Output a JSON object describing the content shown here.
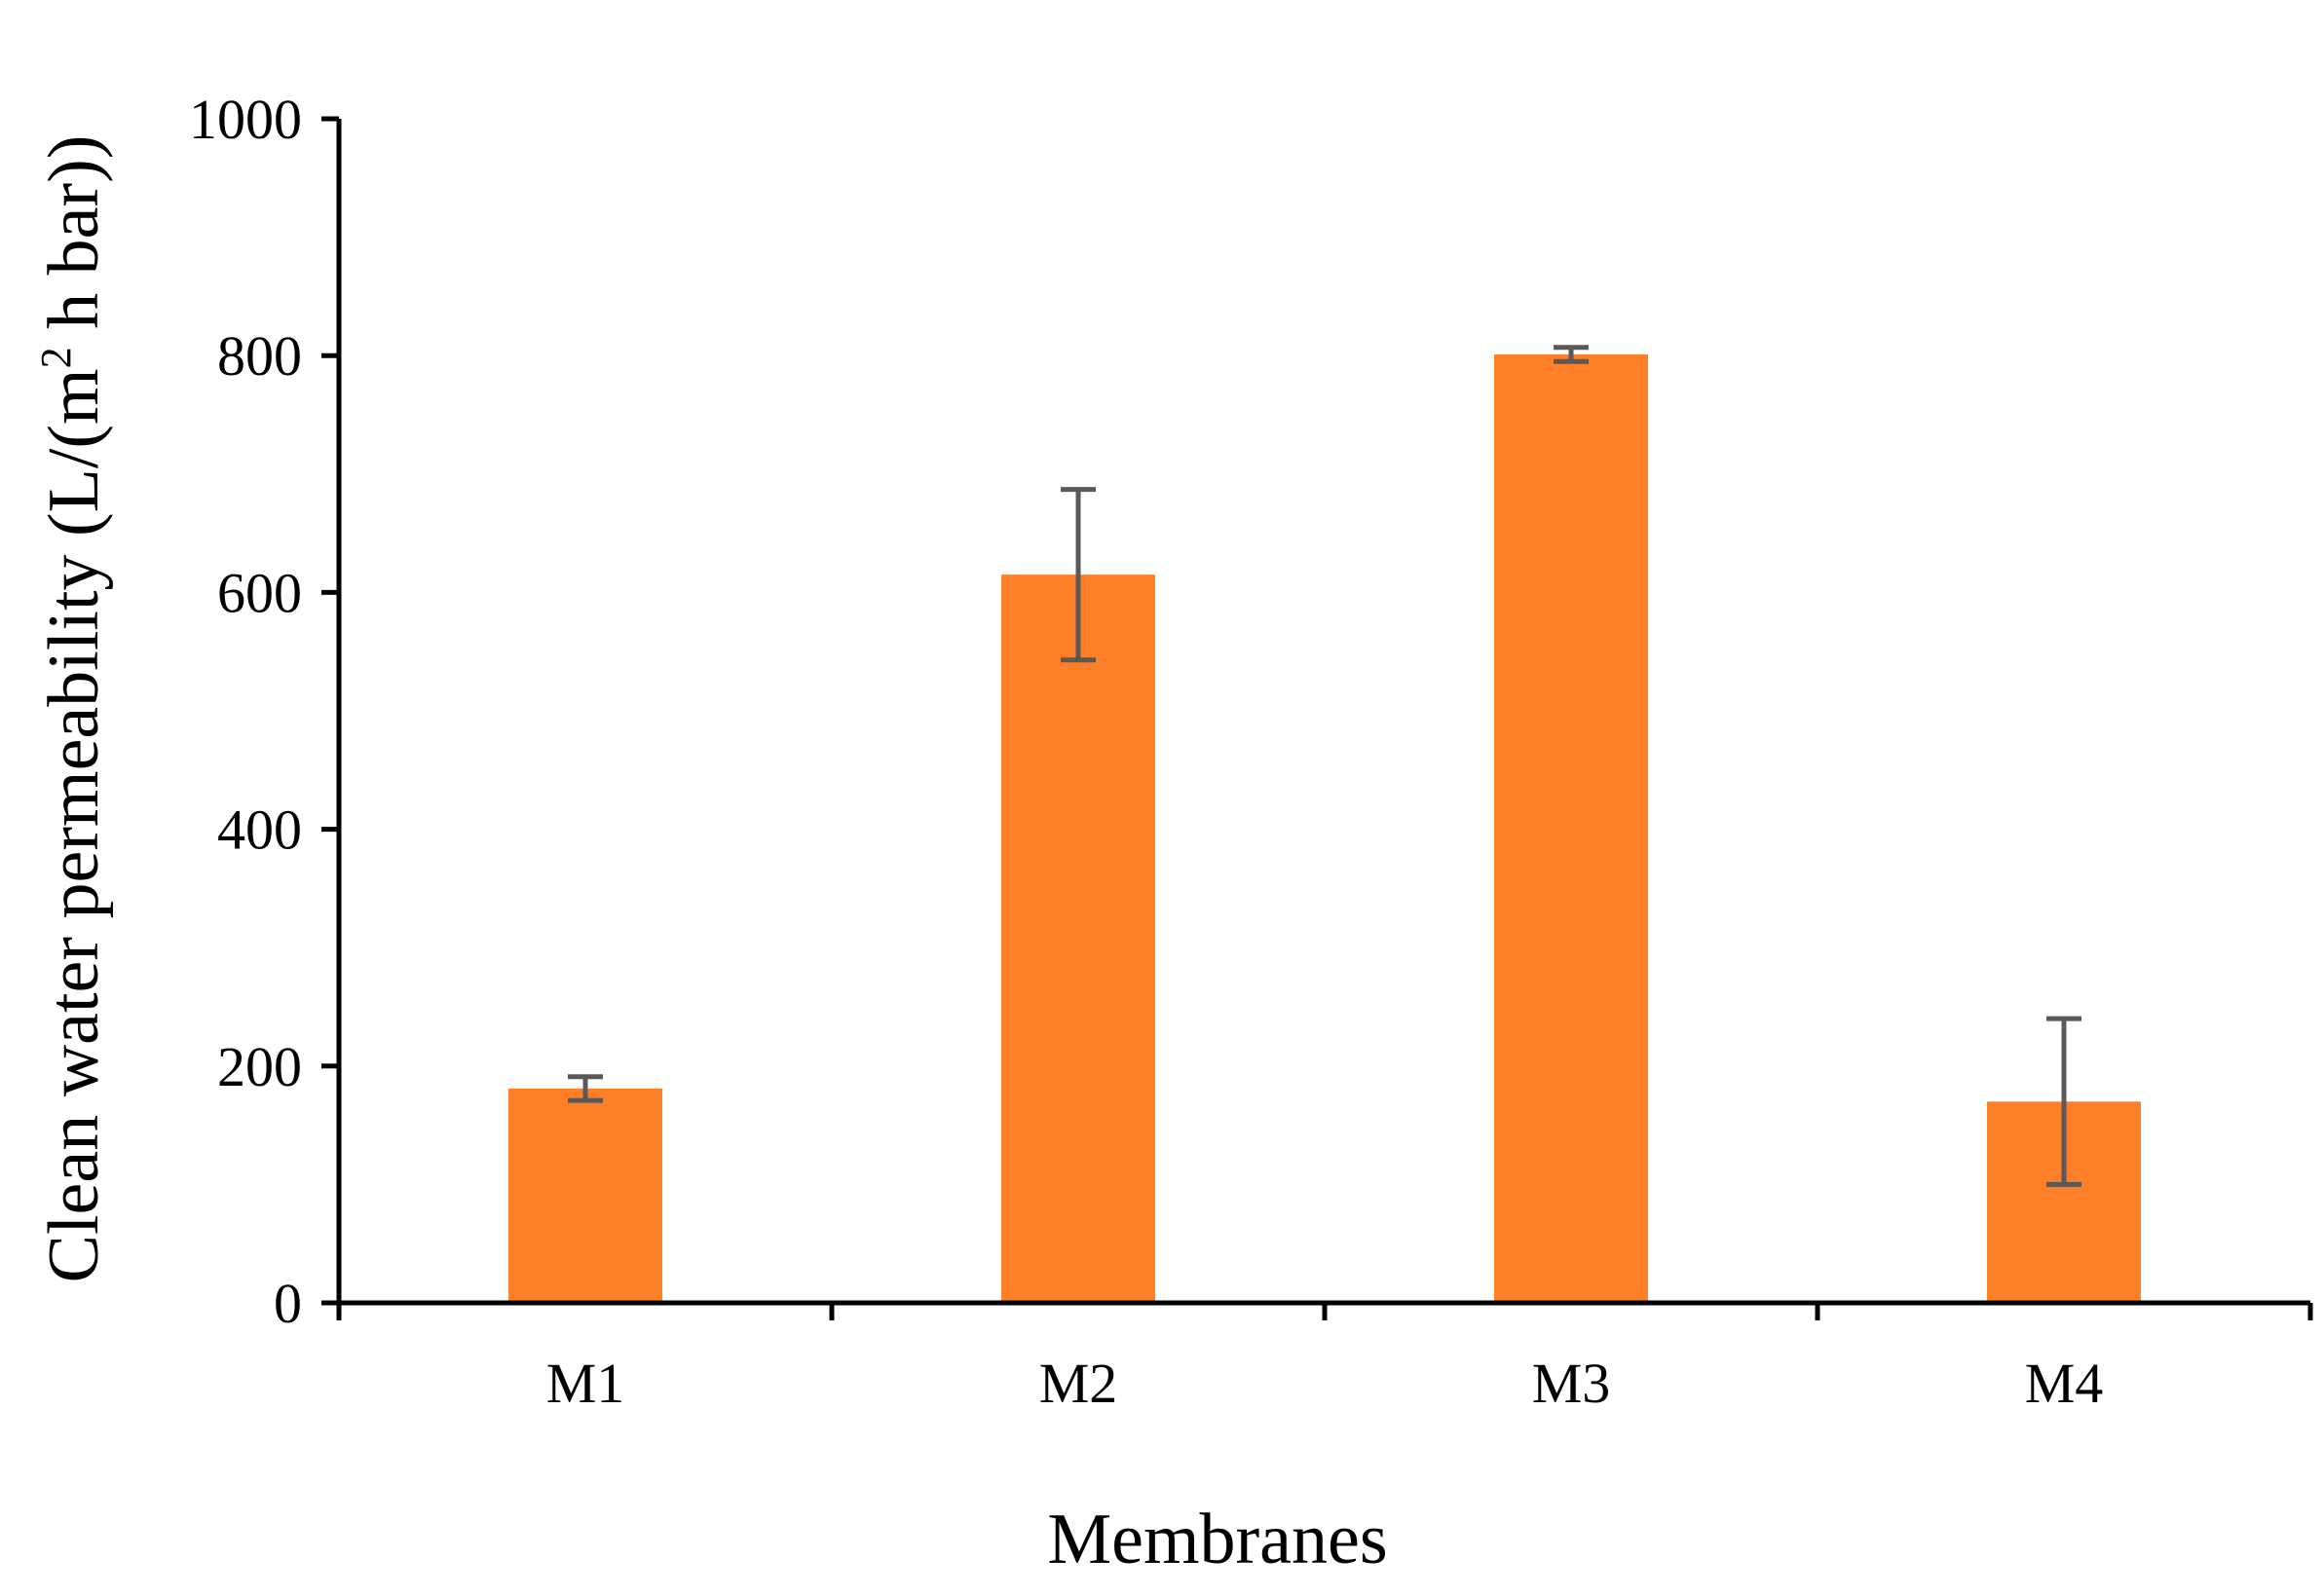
{
  "chart_data": {
    "type": "bar",
    "xlabel": "Membranes",
    "ylabel": "Clean water permeability (L/(m² h bar))",
    "ylabel_parts": {
      "pre": "Clean water permeability (L/(m",
      "sup": "2",
      "post": " h bar))"
    },
    "categories": [
      "M1",
      "M2",
      "M3",
      "M4"
    ],
    "values": [
      181,
      615,
      801,
      170
    ],
    "errors": [
      10,
      72,
      6,
      70
    ],
    "ylim": [
      0,
      1000
    ],
    "yticks": [
      0,
      200,
      400,
      600,
      800,
      1000
    ],
    "ytick_labels": [
      "0",
      "200",
      "400",
      "600",
      "800",
      "1000"
    ],
    "grid": false,
    "legend": "none",
    "colors": {
      "bar": "#FD7F28",
      "error_bar": "#595959",
      "axis": "#000000"
    }
  }
}
